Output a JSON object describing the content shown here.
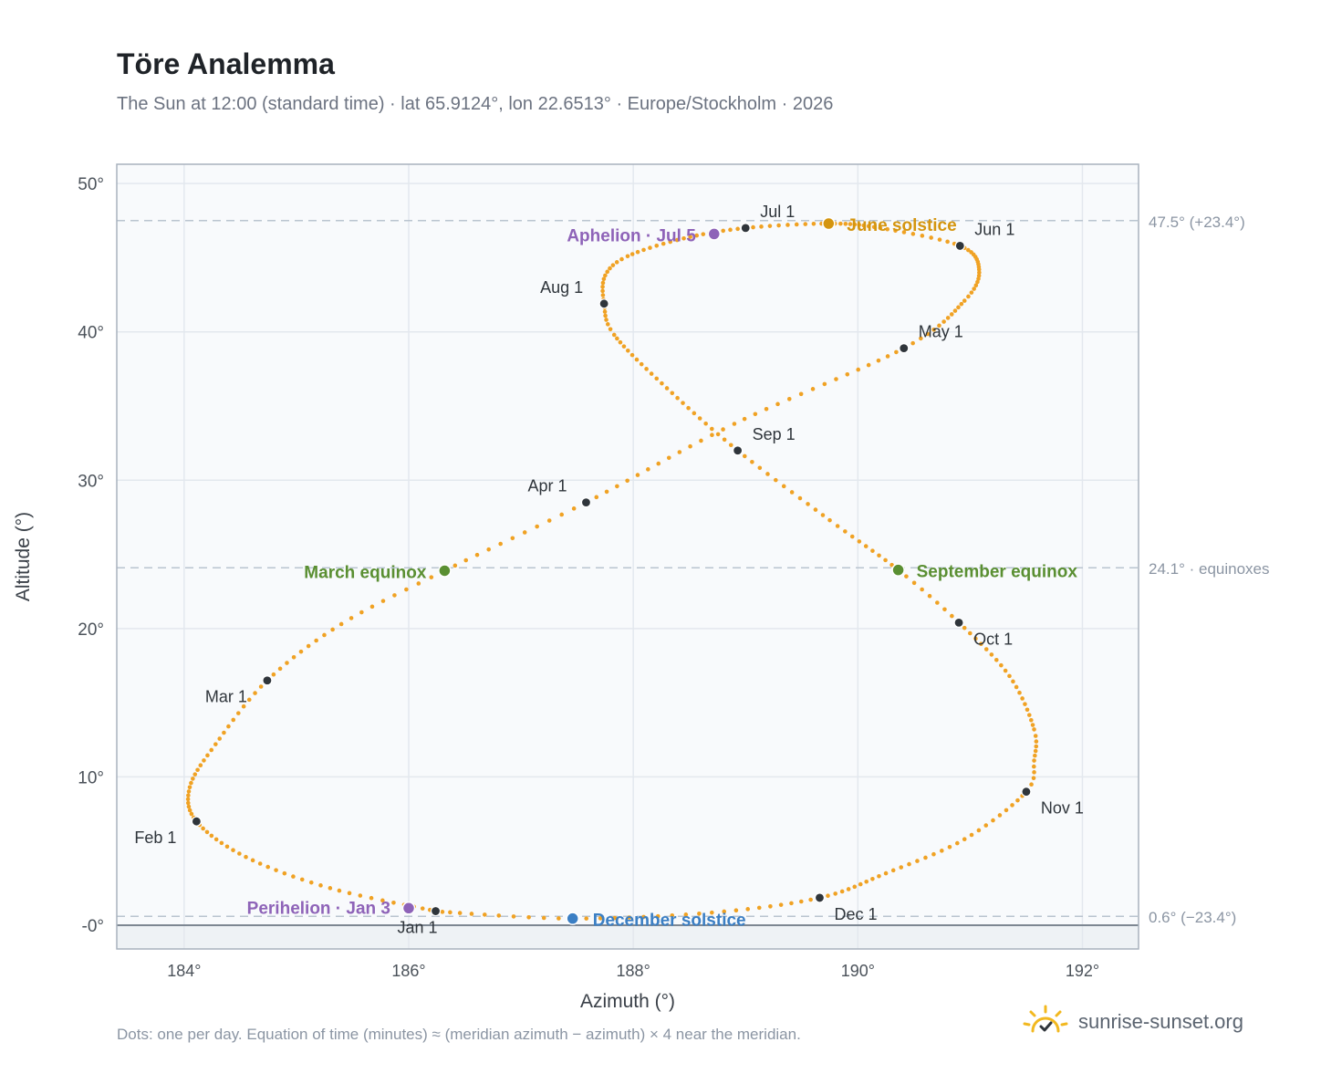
{
  "header": {
    "title": "Töre Analemma",
    "subtitle": "The Sun at 12:00 (standard time) · lat 65.9124°, lon 22.6513° · Europe/Stockholm · 2026"
  },
  "footer": {
    "note": "Dots: one per day. Equation of time (minutes) ≈ (meridian azimuth − azimuth) × 4 near the meridian.",
    "brand": "sunrise-sunset.org",
    "brand_icon": "sun-check-icon"
  },
  "chart_data": {
    "type": "scatter",
    "xlabel": "Azimuth (°)",
    "ylabel": "Altitude (°)",
    "xlim": [
      183.4,
      192.5
    ],
    "ylim": [
      -1.6,
      51.3
    ],
    "xticks": [
      184,
      186,
      188,
      190,
      192
    ],
    "xtick_labels": [
      "184°",
      "186°",
      "188°",
      "190°",
      "192°"
    ],
    "yticks": [
      0,
      10,
      20,
      30,
      40,
      50
    ],
    "ytick_labels": [
      "-0°",
      "10°",
      "20°",
      "30°",
      "40°",
      "50°"
    ],
    "grid": true,
    "colors": {
      "path": "#f0a224",
      "month_marker": "#2f353b",
      "solstice_june": "#d4950f",
      "solstice_december": "#3b7fc4",
      "equinox": "#5a8f32",
      "apsis": "#8e63b8",
      "reference_line": "#b9c4cf"
    },
    "reference_lines": [
      {
        "y": 47.5,
        "label": "47.5° (+23.4°)"
      },
      {
        "y": 24.1,
        "label": "24.1° · equinoxes"
      },
      {
        "y": 0.6,
        "label": "0.6° (−23.4°)"
      }
    ],
    "month_markers": [
      {
        "label": "Jan 1",
        "az": 186.24,
        "alt": 0.95
      },
      {
        "label": "Feb 1",
        "az": 184.11,
        "alt": 7.0
      },
      {
        "label": "Mar 1",
        "az": 184.74,
        "alt": 16.5
      },
      {
        "label": "Apr 1",
        "az": 187.58,
        "alt": 28.5
      },
      {
        "label": "May 1",
        "az": 190.41,
        "alt": 38.9
      },
      {
        "label": "Jun 1",
        "az": 190.91,
        "alt": 45.8
      },
      {
        "label": "Jul 1",
        "az": 189.0,
        "alt": 47.0
      },
      {
        "label": "Aug 1",
        "az": 187.74,
        "alt": 41.9
      },
      {
        "label": "Sep 1",
        "az": 188.93,
        "alt": 32.0
      },
      {
        "label": "Oct 1",
        "az": 190.9,
        "alt": 20.4
      },
      {
        "label": "Nov 1",
        "az": 191.5,
        "alt": 9.0
      },
      {
        "label": "Dec 1",
        "az": 189.66,
        "alt": 1.85
      }
    ],
    "events": [
      {
        "label": "June solstice",
        "az": 189.74,
        "alt": 47.3,
        "kind": "solstice_june"
      },
      {
        "label": "December solstice",
        "az": 187.46,
        "alt": 0.45,
        "kind": "solstice_december"
      },
      {
        "label": "March equinox",
        "az": 186.32,
        "alt": 23.9,
        "kind": "equinox"
      },
      {
        "label": "September equinox",
        "az": 190.36,
        "alt": 23.95,
        "kind": "equinox"
      },
      {
        "label": "Aphelion · Jul 5",
        "az": 188.72,
        "alt": 46.6,
        "kind": "apsis"
      },
      {
        "label": "Perihelion · Jan 3",
        "az": 186.0,
        "alt": 1.15,
        "kind": "apsis"
      }
    ],
    "daily_path_keypoints": [
      {
        "day": 1,
        "az": 186.24,
        "alt": 0.95
      },
      {
        "day": 12,
        "az": 185.3,
        "alt": 2.5
      },
      {
        "day": 22,
        "az": 184.55,
        "alt": 4.6
      },
      {
        "day": 32,
        "az": 184.11,
        "alt": 7.0
      },
      {
        "day": 41,
        "az": 184.05,
        "alt": 9.3
      },
      {
        "day": 50,
        "az": 184.28,
        "alt": 12.2
      },
      {
        "day": 60,
        "az": 184.74,
        "alt": 16.5
      },
      {
        "day": 70,
        "az": 185.4,
        "alt": 20.3
      },
      {
        "day": 79,
        "az": 186.32,
        "alt": 23.9
      },
      {
        "day": 91,
        "az": 187.58,
        "alt": 28.5
      },
      {
        "day": 105,
        "az": 188.9,
        "alt": 33.8
      },
      {
        "day": 121,
        "az": 190.41,
        "alt": 38.9
      },
      {
        "day": 133,
        "az": 190.95,
        "alt": 42.1
      },
      {
        "day": 142,
        "az": 191.08,
        "alt": 44.2
      },
      {
        "day": 152,
        "az": 190.91,
        "alt": 45.8
      },
      {
        "day": 162,
        "az": 190.2,
        "alt": 47.0
      },
      {
        "day": 172,
        "az": 189.74,
        "alt": 47.3
      },
      {
        "day": 182,
        "az": 189.0,
        "alt": 47.0
      },
      {
        "day": 191,
        "az": 188.45,
        "alt": 46.3
      },
      {
        "day": 200,
        "az": 187.95,
        "alt": 45.1
      },
      {
        "day": 206,
        "az": 187.75,
        "alt": 43.8
      },
      {
        "day": 213,
        "az": 187.74,
        "alt": 41.9
      },
      {
        "day": 220,
        "az": 187.83,
        "alt": 39.8
      },
      {
        "day": 232,
        "az": 188.3,
        "alt": 36.2
      },
      {
        "day": 244,
        "az": 188.93,
        "alt": 32.0
      },
      {
        "day": 256,
        "az": 189.75,
        "alt": 27.3
      },
      {
        "day": 266,
        "az": 190.36,
        "alt": 23.95
      },
      {
        "day": 274,
        "az": 190.9,
        "alt": 20.4
      },
      {
        "day": 284,
        "az": 191.35,
        "alt": 16.8
      },
      {
        "day": 294,
        "az": 191.57,
        "alt": 13.2
      },
      {
        "day": 300,
        "az": 191.57,
        "alt": 11.1
      },
      {
        "day": 305,
        "az": 191.5,
        "alt": 9.0
      },
      {
        "day": 315,
        "az": 190.95,
        "alt": 5.8
      },
      {
        "day": 325,
        "az": 190.25,
        "alt": 3.5
      },
      {
        "day": 335,
        "az": 189.66,
        "alt": 1.85
      },
      {
        "day": 345,
        "az": 188.7,
        "alt": 0.85
      },
      {
        "day": 355,
        "az": 187.46,
        "alt": 0.45
      },
      {
        "day": 365,
        "az": 186.3,
        "alt": 0.9
      }
    ]
  }
}
